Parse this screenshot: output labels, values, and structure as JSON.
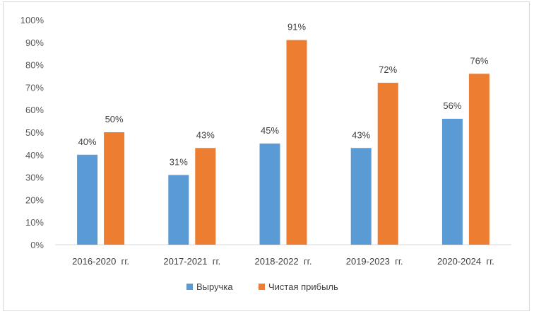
{
  "chart_data": {
    "type": "bar",
    "categories": [
      "2016-2020  гг.",
      "2017-2021  гг.",
      "2018-2022  гг.",
      "2019-2023  гг.",
      "2020-2024  гг."
    ],
    "series": [
      {
        "name": "Выручка",
        "values": [
          40,
          31,
          45,
          43,
          56
        ],
        "labels": [
          "40%",
          "31%",
          "45%",
          "43%",
          "56%"
        ],
        "color": "#5b9bd5"
      },
      {
        "name": "Чистая прибыль",
        "values": [
          50,
          43,
          91,
          72,
          76
        ],
        "labels": [
          "50%",
          "43%",
          "91%",
          "72%",
          "76%"
        ],
        "color": "#ed7d31"
      }
    ],
    "yticks": [
      "0%",
      "10%",
      "20%",
      "30%",
      "40%",
      "50%",
      "60%",
      "70%",
      "80%",
      "90%",
      "100%"
    ],
    "ylim": [
      0,
      100
    ],
    "grid": false,
    "legend_position": "bottom",
    "axis_color": "#d9d9d9"
  }
}
